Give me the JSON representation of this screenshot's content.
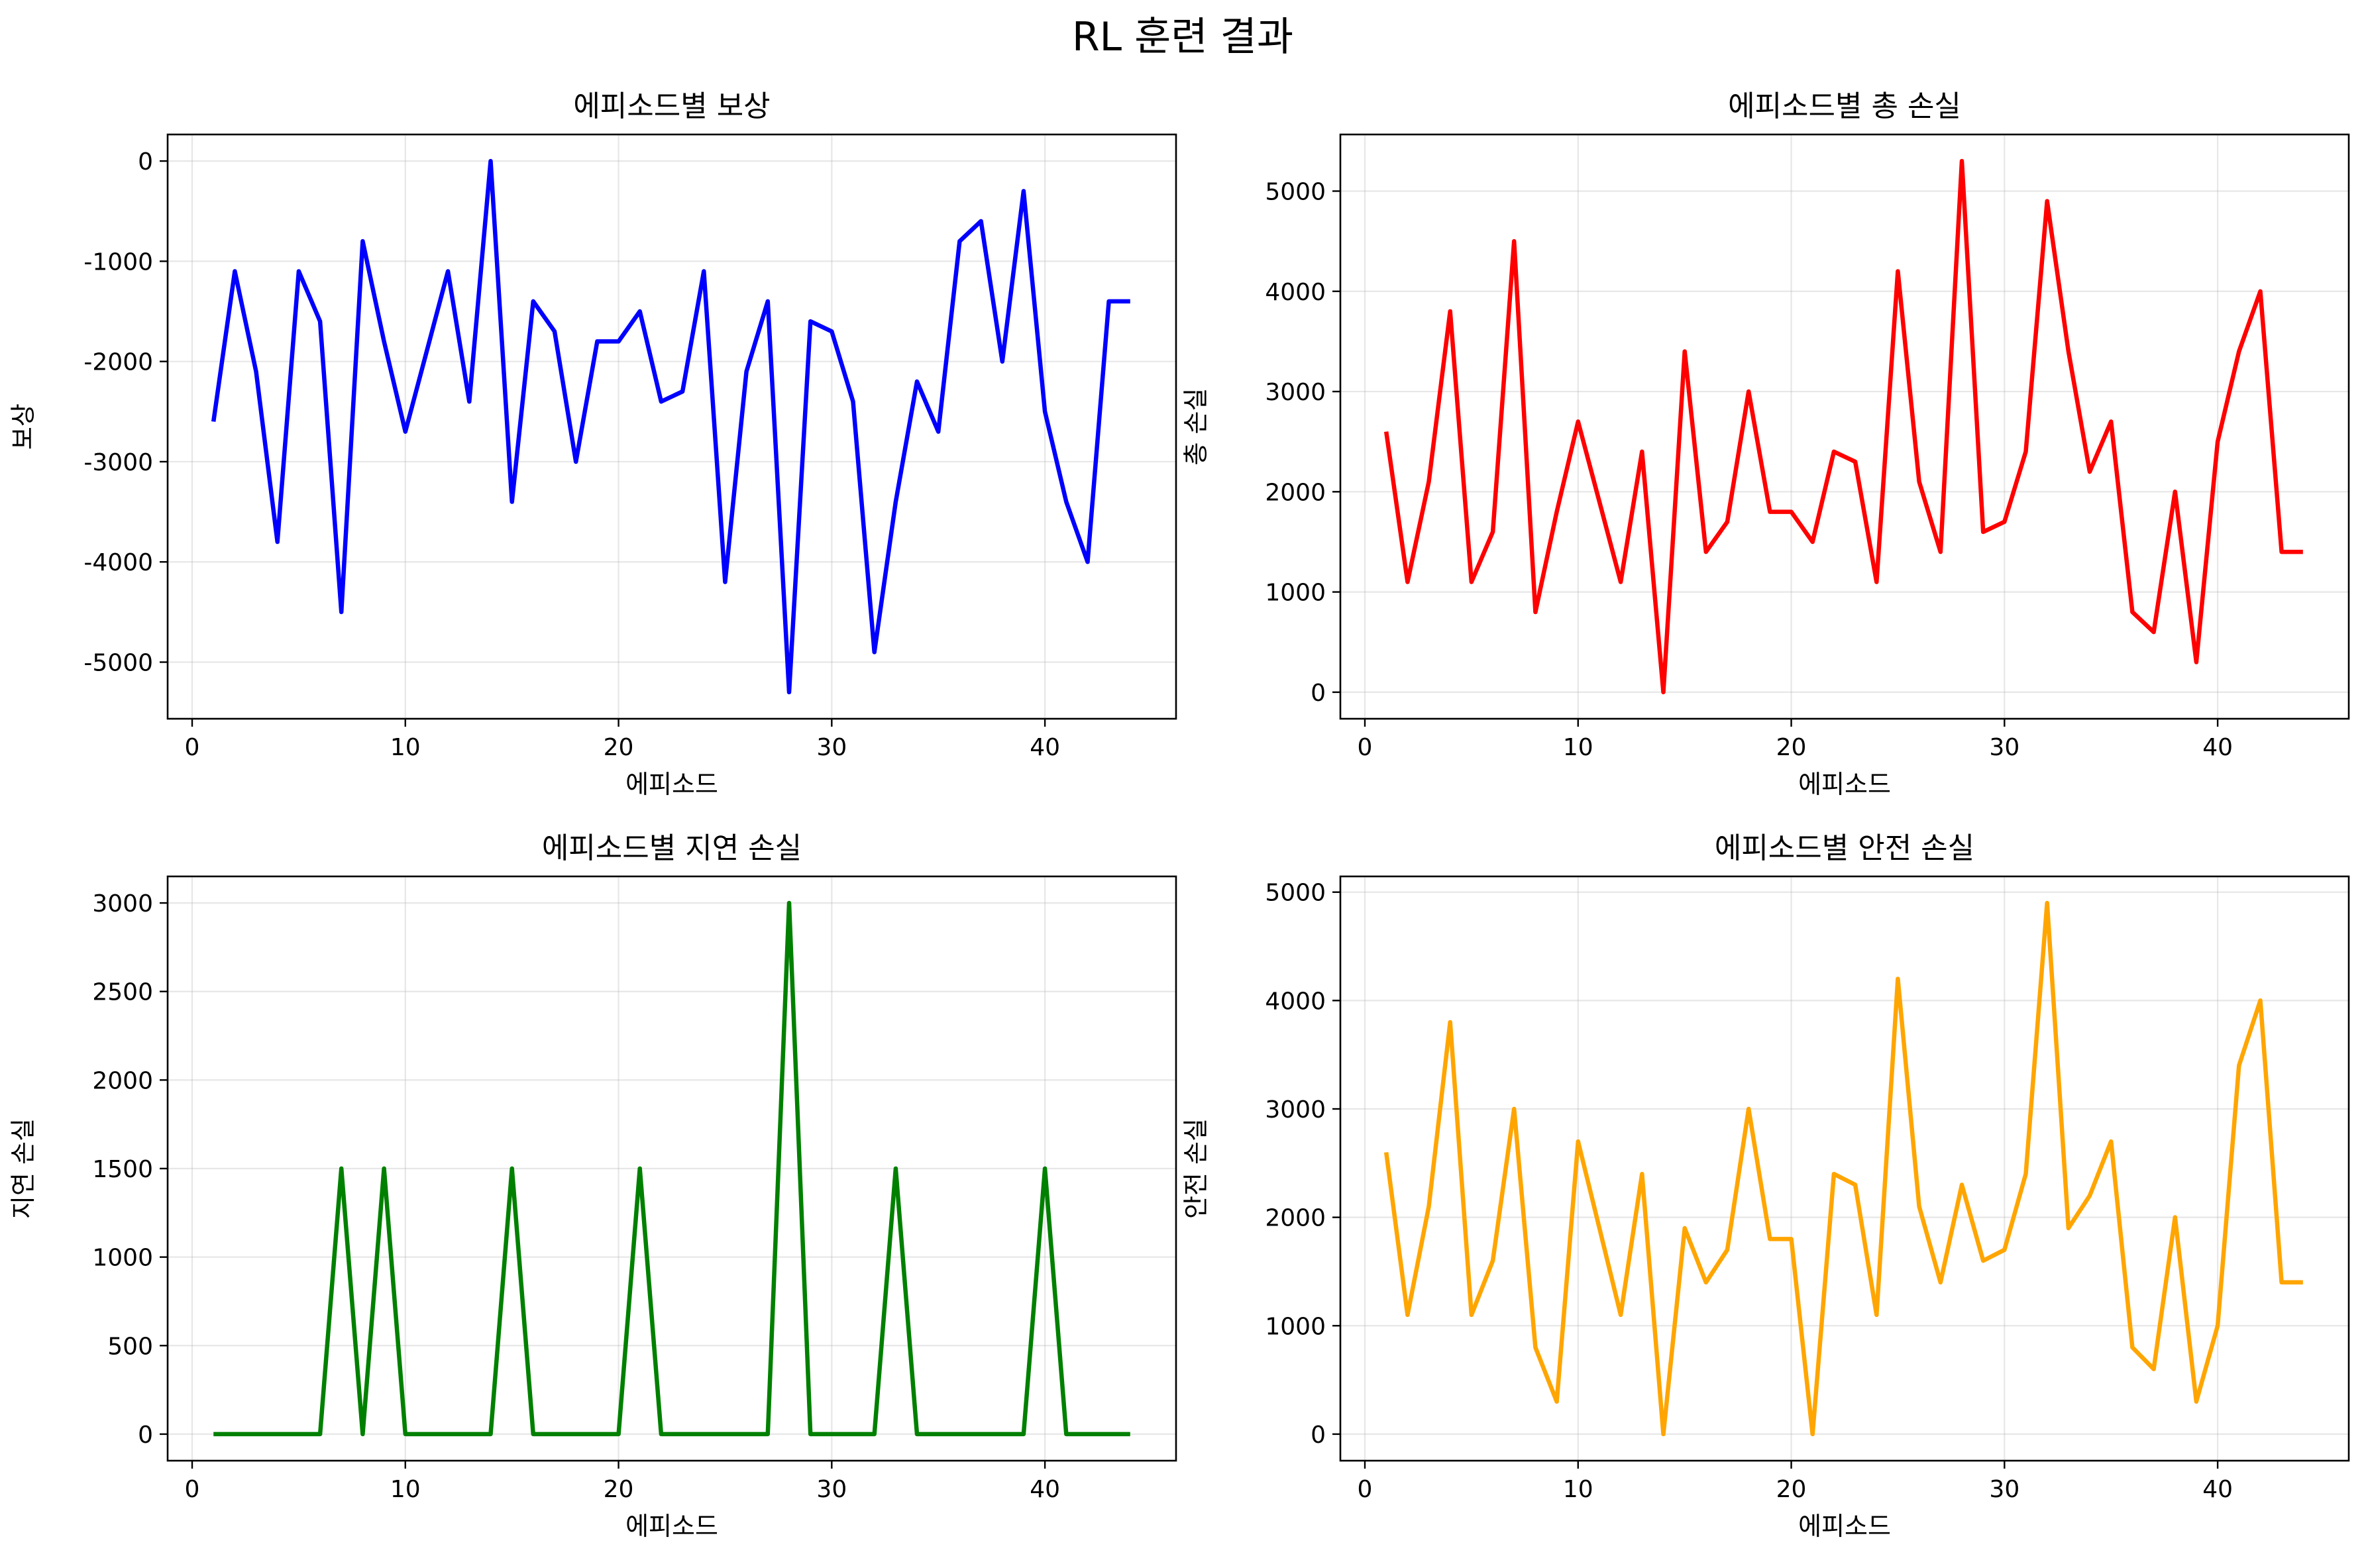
{
  "suptitle": "RL 훈련 결과",
  "chart_data": [
    {
      "type": "line",
      "title": "에피소드별 보상",
      "xlabel": "에피소드",
      "ylabel": "보상",
      "color": "#0000ff",
      "xlim": [
        -1.15,
        46.15
      ],
      "ylim": [
        -5565,
        265
      ],
      "xticks": [
        0,
        10,
        20,
        30,
        40
      ],
      "yticks": [
        0,
        -1000,
        -2000,
        -3000,
        -4000,
        -5000
      ],
      "grid": true,
      "x": [
        1,
        2,
        3,
        4,
        5,
        6,
        7,
        8,
        9,
        10,
        11,
        12,
        13,
        14,
        15,
        16,
        17,
        18,
        19,
        20,
        21,
        22,
        23,
        24,
        25,
        26,
        27,
        28,
        29,
        30,
        31,
        32,
        33,
        34,
        35,
        36,
        37,
        38,
        39,
        40,
        41,
        42,
        43,
        44
      ],
      "y": [
        -2600,
        -1100,
        -2100,
        -3800,
        -1100,
        -1600,
        -4500,
        -800,
        -1800,
        -2700,
        -1900,
        -1100,
        -2400,
        0,
        -3400,
        -1400,
        -1700,
        -3000,
        -1800,
        -1800,
        -1500,
        -2400,
        -2300,
        -1100,
        -4200,
        -2100,
        -1400,
        -5300,
        -1600,
        -1700,
        -2400,
        -4900,
        -3400,
        -2200,
        -2700,
        -800,
        -600,
        -2000,
        -300,
        -2500,
        -3400,
        -4000,
        -1400,
        -1400
      ]
    },
    {
      "type": "line",
      "title": "에피소드별 총 손실",
      "xlabel": "에피소드",
      "ylabel": "총 손실",
      "color": "#ff0000",
      "xlim": [
        -1.15,
        46.15
      ],
      "ylim": [
        -265,
        5565
      ],
      "xticks": [
        0,
        10,
        20,
        30,
        40
      ],
      "yticks": [
        0,
        1000,
        2000,
        3000,
        4000,
        5000
      ],
      "grid": true,
      "x": [
        1,
        2,
        3,
        4,
        5,
        6,
        7,
        8,
        9,
        10,
        11,
        12,
        13,
        14,
        15,
        16,
        17,
        18,
        19,
        20,
        21,
        22,
        23,
        24,
        25,
        26,
        27,
        28,
        29,
        30,
        31,
        32,
        33,
        34,
        35,
        36,
        37,
        38,
        39,
        40,
        41,
        42,
        43,
        44
      ],
      "y": [
        2600,
        1100,
        2100,
        3800,
        1100,
        1600,
        4500,
        800,
        1800,
        2700,
        1900,
        1100,
        2400,
        0,
        3400,
        1400,
        1700,
        3000,
        1800,
        1800,
        1500,
        2400,
        2300,
        1100,
        4200,
        2100,
        1400,
        5300,
        1600,
        1700,
        2400,
        4900,
        3400,
        2200,
        2700,
        800,
        600,
        2000,
        300,
        2500,
        3400,
        4000,
        1400,
        1400
      ]
    },
    {
      "type": "line",
      "title": "에피소드별 지연 손실",
      "xlabel": "에피소드",
      "ylabel": "지연 손실",
      "color": "#008000",
      "xlim": [
        -1.15,
        46.15
      ],
      "ylim": [
        -150,
        3150
      ],
      "xticks": [
        0,
        10,
        20,
        30,
        40
      ],
      "yticks": [
        0,
        500,
        1000,
        1500,
        2000,
        2500,
        3000
      ],
      "grid": true,
      "x": [
        1,
        2,
        3,
        4,
        5,
        6,
        7,
        8,
        9,
        10,
        11,
        12,
        13,
        14,
        15,
        16,
        17,
        18,
        19,
        20,
        21,
        22,
        23,
        24,
        25,
        26,
        27,
        28,
        29,
        30,
        31,
        32,
        33,
        34,
        35,
        36,
        37,
        38,
        39,
        40,
        41,
        42,
        43,
        44
      ],
      "y": [
        0,
        0,
        0,
        0,
        0,
        0,
        1500,
        0,
        1500,
        0,
        0,
        0,
        0,
        0,
        1500,
        0,
        0,
        0,
        0,
        0,
        1500,
        0,
        0,
        0,
        0,
        0,
        0,
        3000,
        0,
        0,
        0,
        0,
        1500,
        0,
        0,
        0,
        0,
        0,
        0,
        1500,
        0,
        0,
        0,
        0
      ]
    },
    {
      "type": "line",
      "title": "에피소드별 안전 손실",
      "xlabel": "에피소드",
      "ylabel": "안전 손실",
      "color": "#ffa500",
      "xlim": [
        -1.15,
        46.15
      ],
      "ylim": [
        -245,
        5145
      ],
      "xticks": [
        0,
        10,
        20,
        30,
        40
      ],
      "yticks": [
        0,
        1000,
        2000,
        3000,
        4000,
        5000
      ],
      "grid": true,
      "x": [
        1,
        2,
        3,
        4,
        5,
        6,
        7,
        8,
        9,
        10,
        11,
        12,
        13,
        14,
        15,
        16,
        17,
        18,
        19,
        20,
        21,
        22,
        23,
        24,
        25,
        26,
        27,
        28,
        29,
        30,
        31,
        32,
        33,
        34,
        35,
        36,
        37,
        38,
        39,
        40,
        41,
        42,
        43,
        44
      ],
      "y": [
        2600,
        1100,
        2100,
        3800,
        1100,
        1600,
        3000,
        800,
        300,
        2700,
        1900,
        1100,
        2400,
        0,
        1900,
        1400,
        1700,
        3000,
        1800,
        1800,
        0,
        2400,
        2300,
        1100,
        4200,
        2100,
        1400,
        2300,
        1600,
        1700,
        2400,
        4900,
        1900,
        2200,
        2700,
        800,
        600,
        2000,
        300,
        1000,
        3400,
        4000,
        1400,
        1400
      ]
    }
  ]
}
